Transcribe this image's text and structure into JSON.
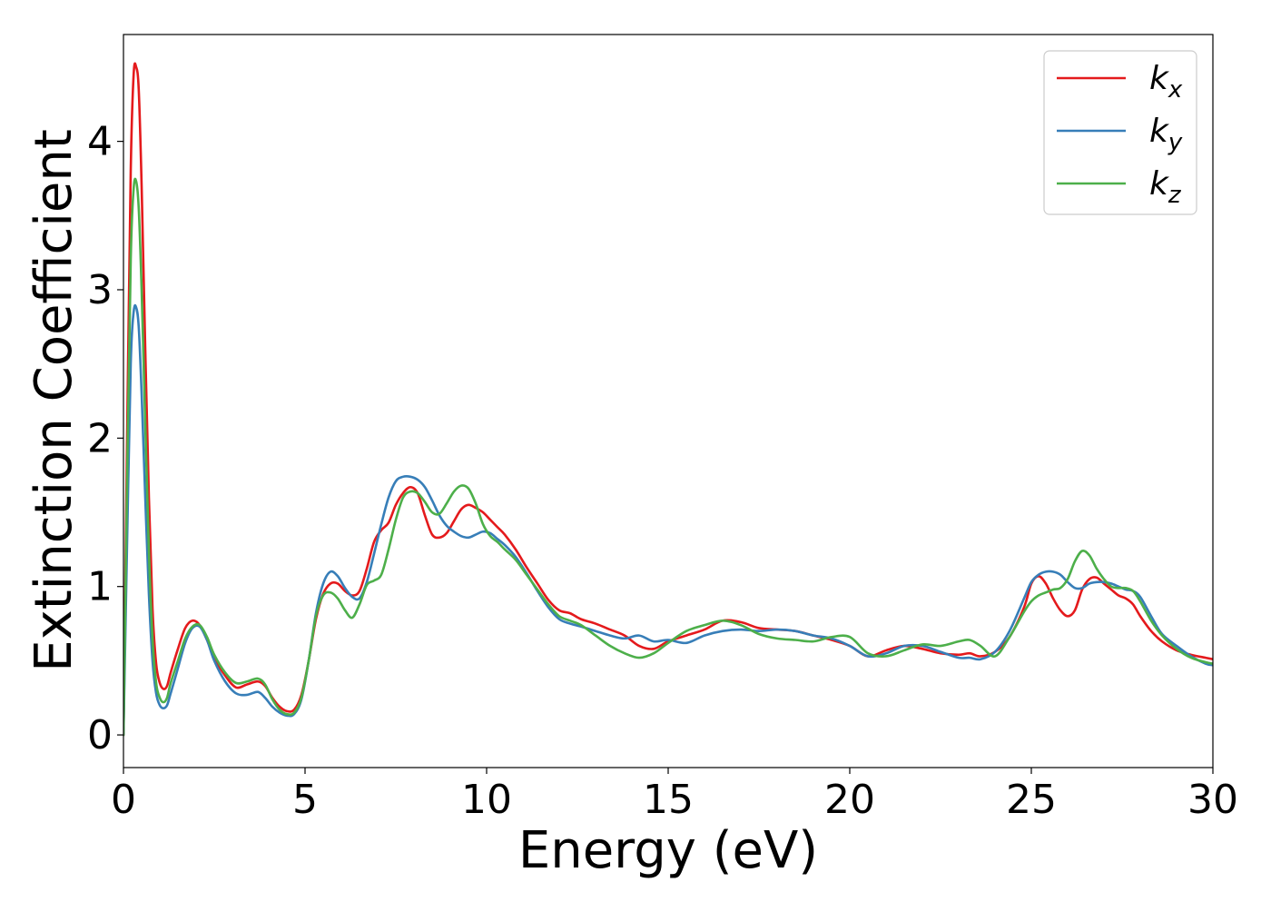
{
  "chart_data": {
    "type": "line",
    "title": "",
    "xlabel": "Energy (eV)",
    "ylabel": "Extinction Coefficient",
    "xlim": [
      0,
      30
    ],
    "ylim": [
      -0.22,
      4.72
    ],
    "xticks": [
      0,
      5,
      10,
      15,
      20,
      25,
      30
    ],
    "yticks": [
      0,
      1,
      2,
      3,
      4
    ],
    "grid": false,
    "legend_position": "top-right",
    "series": [
      {
        "name": "k",
        "subscript": "x",
        "color": "#e41a1c",
        "x": [
          0,
          0.1,
          0.2,
          0.28,
          0.35,
          0.42,
          0.5,
          0.6,
          0.7,
          0.8,
          0.9,
          1.0,
          1.1,
          1.2,
          1.3,
          1.5,
          1.7,
          1.9,
          2.1,
          2.3,
          2.5,
          2.8,
          3.1,
          3.4,
          3.7,
          3.9,
          4.1,
          4.3,
          4.5,
          4.7,
          4.9,
          5.1,
          5.3,
          5.5,
          5.7,
          5.9,
          6.1,
          6.3,
          6.5,
          6.7,
          6.9,
          7.1,
          7.3,
          7.5,
          7.7,
          7.9,
          8.1,
          8.3,
          8.5,
          8.7,
          8.9,
          9.1,
          9.3,
          9.5,
          9.7,
          9.9,
          10.1,
          10.3,
          10.5,
          10.8,
          11.1,
          11.4,
          11.7,
          12.0,
          12.3,
          12.6,
          13.0,
          13.4,
          13.8,
          14.2,
          14.6,
          15.0,
          15.5,
          16.0,
          16.5,
          17.0,
          17.5,
          18.0,
          18.5,
          19.0,
          19.5,
          20.0,
          20.5,
          21.0,
          21.5,
          22.0,
          22.5,
          23.0,
          23.3,
          23.6,
          24.0,
          24.4,
          24.8,
          25.0,
          25.2,
          25.4,
          25.6,
          25.8,
          26.0,
          26.2,
          26.4,
          26.6,
          26.8,
          27.0,
          27.2,
          27.4,
          27.6,
          27.8,
          28.0,
          28.3,
          28.6,
          29.0,
          29.4,
          29.8,
          30.0
        ],
        "y": [
          0.0,
          2.0,
          3.8,
          4.45,
          4.5,
          4.35,
          3.7,
          2.6,
          1.6,
          0.85,
          0.48,
          0.35,
          0.31,
          0.33,
          0.42,
          0.58,
          0.72,
          0.77,
          0.74,
          0.64,
          0.52,
          0.4,
          0.32,
          0.34,
          0.36,
          0.33,
          0.25,
          0.19,
          0.16,
          0.17,
          0.27,
          0.5,
          0.78,
          0.95,
          1.02,
          1.02,
          0.97,
          0.94,
          0.97,
          1.12,
          1.3,
          1.38,
          1.43,
          1.55,
          1.63,
          1.67,
          1.63,
          1.48,
          1.35,
          1.33,
          1.36,
          1.44,
          1.52,
          1.55,
          1.53,
          1.5,
          1.45,
          1.4,
          1.35,
          1.25,
          1.13,
          1.02,
          0.91,
          0.84,
          0.82,
          0.78,
          0.75,
          0.71,
          0.67,
          0.6,
          0.58,
          0.63,
          0.67,
          0.71,
          0.77,
          0.76,
          0.72,
          0.71,
          0.7,
          0.67,
          0.64,
          0.6,
          0.53,
          0.57,
          0.6,
          0.58,
          0.55,
          0.54,
          0.55,
          0.53,
          0.56,
          0.66,
          0.86,
          1.02,
          1.07,
          1.02,
          0.92,
          0.84,
          0.8,
          0.84,
          0.98,
          1.05,
          1.06,
          1.02,
          0.98,
          0.94,
          0.92,
          0.88,
          0.8,
          0.7,
          0.63,
          0.57,
          0.54,
          0.52,
          0.51
        ]
      },
      {
        "name": "k",
        "subscript": "y",
        "color": "#377eb8",
        "x": [
          0,
          0.1,
          0.2,
          0.28,
          0.35,
          0.42,
          0.5,
          0.6,
          0.7,
          0.8,
          0.9,
          1.0,
          1.1,
          1.2,
          1.3,
          1.5,
          1.7,
          1.9,
          2.1,
          2.3,
          2.5,
          2.8,
          3.1,
          3.4,
          3.7,
          3.9,
          4.1,
          4.3,
          4.5,
          4.7,
          4.9,
          5.1,
          5.3,
          5.5,
          5.7,
          5.9,
          6.1,
          6.3,
          6.5,
          6.7,
          6.9,
          7.1,
          7.3,
          7.5,
          7.7,
          7.9,
          8.1,
          8.3,
          8.5,
          8.7,
          8.9,
          9.1,
          9.3,
          9.5,
          9.7,
          9.9,
          10.1,
          10.3,
          10.5,
          10.8,
          11.1,
          11.4,
          11.7,
          12.0,
          12.3,
          12.6,
          13.0,
          13.4,
          13.8,
          14.2,
          14.6,
          15.0,
          15.5,
          16.0,
          16.5,
          17.0,
          17.5,
          18.0,
          18.5,
          19.0,
          19.5,
          20.0,
          20.5,
          21.0,
          21.5,
          22.0,
          22.5,
          23.0,
          23.3,
          23.6,
          24.0,
          24.4,
          24.8,
          25.0,
          25.2,
          25.4,
          25.6,
          25.8,
          26.0,
          26.2,
          26.4,
          26.6,
          26.8,
          27.0,
          27.2,
          27.4,
          27.6,
          27.8,
          28.0,
          28.3,
          28.6,
          29.0,
          29.4,
          29.8,
          30.0
        ],
        "y": [
          0.0,
          1.3,
          2.5,
          2.85,
          2.88,
          2.75,
          2.3,
          1.6,
          0.95,
          0.5,
          0.28,
          0.2,
          0.18,
          0.2,
          0.28,
          0.45,
          0.62,
          0.72,
          0.73,
          0.64,
          0.5,
          0.36,
          0.28,
          0.27,
          0.29,
          0.25,
          0.19,
          0.15,
          0.13,
          0.14,
          0.24,
          0.5,
          0.82,
          1.02,
          1.1,
          1.07,
          0.99,
          0.93,
          0.92,
          1.03,
          1.22,
          1.42,
          1.6,
          1.71,
          1.74,
          1.74,
          1.72,
          1.67,
          1.58,
          1.48,
          1.41,
          1.37,
          1.34,
          1.33,
          1.35,
          1.37,
          1.36,
          1.32,
          1.28,
          1.2,
          1.09,
          0.97,
          0.86,
          0.78,
          0.75,
          0.73,
          0.7,
          0.67,
          0.65,
          0.67,
          0.63,
          0.64,
          0.62,
          0.67,
          0.7,
          0.71,
          0.7,
          0.71,
          0.7,
          0.67,
          0.65,
          0.6,
          0.53,
          0.55,
          0.6,
          0.6,
          0.56,
          0.52,
          0.52,
          0.51,
          0.56,
          0.7,
          0.92,
          1.03,
          1.08,
          1.1,
          1.1,
          1.08,
          1.03,
          0.99,
          0.99,
          1.02,
          1.03,
          1.03,
          1.02,
          1.0,
          0.98,
          0.97,
          0.93,
          0.8,
          0.68,
          0.6,
          0.53,
          0.48,
          0.47
        ]
      },
      {
        "name": "k",
        "subscript": "z",
        "color": "#4daf4a",
        "x": [
          0,
          0.1,
          0.2,
          0.28,
          0.35,
          0.42,
          0.5,
          0.6,
          0.7,
          0.8,
          0.9,
          1.0,
          1.1,
          1.2,
          1.3,
          1.5,
          1.7,
          1.9,
          2.1,
          2.3,
          2.5,
          2.8,
          3.1,
          3.4,
          3.7,
          3.9,
          4.1,
          4.3,
          4.5,
          4.7,
          4.9,
          5.1,
          5.3,
          5.5,
          5.7,
          5.9,
          6.1,
          6.3,
          6.5,
          6.7,
          6.9,
          7.1,
          7.3,
          7.5,
          7.7,
          7.9,
          8.1,
          8.3,
          8.5,
          8.7,
          8.9,
          9.1,
          9.3,
          9.5,
          9.7,
          9.9,
          10.1,
          10.3,
          10.5,
          10.8,
          11.1,
          11.4,
          11.7,
          12.0,
          12.3,
          12.6,
          13.0,
          13.4,
          13.8,
          14.2,
          14.6,
          15.0,
          15.5,
          16.0,
          16.5,
          17.0,
          17.5,
          18.0,
          18.5,
          19.0,
          19.5,
          20.0,
          20.5,
          21.0,
          21.5,
          22.0,
          22.5,
          23.0,
          23.3,
          23.6,
          24.0,
          24.4,
          24.8,
          25.0,
          25.2,
          25.4,
          25.6,
          25.8,
          26.0,
          26.2,
          26.4,
          26.6,
          26.8,
          27.0,
          27.2,
          27.4,
          27.6,
          27.8,
          28.0,
          28.3,
          28.6,
          29.0,
          29.4,
          29.8,
          30.0
        ],
        "y": [
          0.0,
          1.7,
          3.2,
          3.68,
          3.73,
          3.55,
          3.0,
          2.1,
          1.25,
          0.65,
          0.35,
          0.25,
          0.22,
          0.25,
          0.35,
          0.5,
          0.65,
          0.73,
          0.74,
          0.66,
          0.54,
          0.42,
          0.35,
          0.36,
          0.38,
          0.34,
          0.24,
          0.17,
          0.14,
          0.15,
          0.25,
          0.5,
          0.8,
          0.94,
          0.96,
          0.92,
          0.84,
          0.79,
          0.88,
          1.01,
          1.04,
          1.08,
          1.25,
          1.45,
          1.6,
          1.64,
          1.63,
          1.57,
          1.5,
          1.49,
          1.56,
          1.64,
          1.68,
          1.66,
          1.56,
          1.42,
          1.34,
          1.3,
          1.25,
          1.18,
          1.08,
          0.98,
          0.88,
          0.8,
          0.77,
          0.74,
          0.67,
          0.6,
          0.55,
          0.52,
          0.55,
          0.62,
          0.7,
          0.74,
          0.77,
          0.74,
          0.68,
          0.65,
          0.64,
          0.63,
          0.66,
          0.66,
          0.55,
          0.53,
          0.57,
          0.61,
          0.6,
          0.63,
          0.64,
          0.6,
          0.53,
          0.66,
          0.83,
          0.9,
          0.94,
          0.96,
          0.98,
          0.99,
          1.05,
          1.17,
          1.24,
          1.21,
          1.12,
          1.05,
          1.0,
          0.99,
          0.99,
          0.97,
          0.9,
          0.77,
          0.67,
          0.58,
          0.52,
          0.49,
          0.48
        ]
      }
    ]
  }
}
